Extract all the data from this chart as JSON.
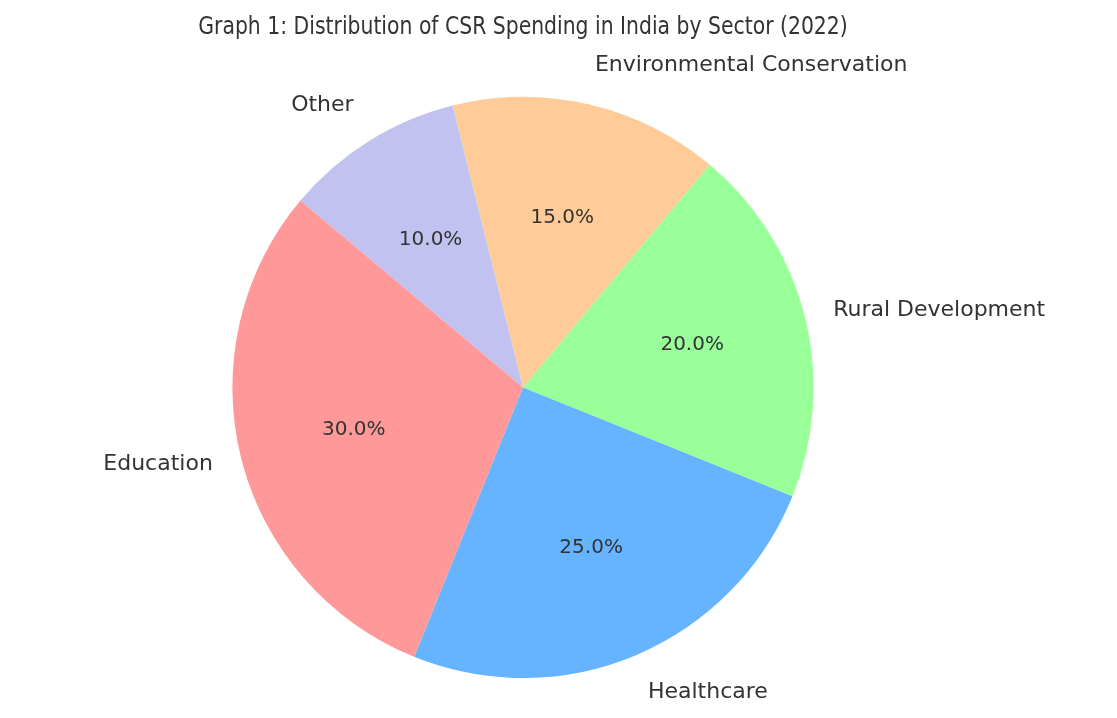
{
  "chart_data": {
    "type": "pie",
    "title": "Graph 1: Distribution of CSR Spending in India by Sector (2022)",
    "categories": [
      "Other",
      "Environmental Conservation",
      "Rural Development",
      "Healthcare",
      "Education"
    ],
    "values": [
      10,
      15,
      20,
      25,
      30
    ],
    "value_labels": [
      "10.0%",
      "15.0%",
      "20.0%",
      "25.0%",
      "30.0%"
    ],
    "colors": [
      "#c2c2f0",
      "#ffcc99",
      "#99ff99",
      "#66b3ff",
      "#ff9999"
    ],
    "legend": false
  }
}
